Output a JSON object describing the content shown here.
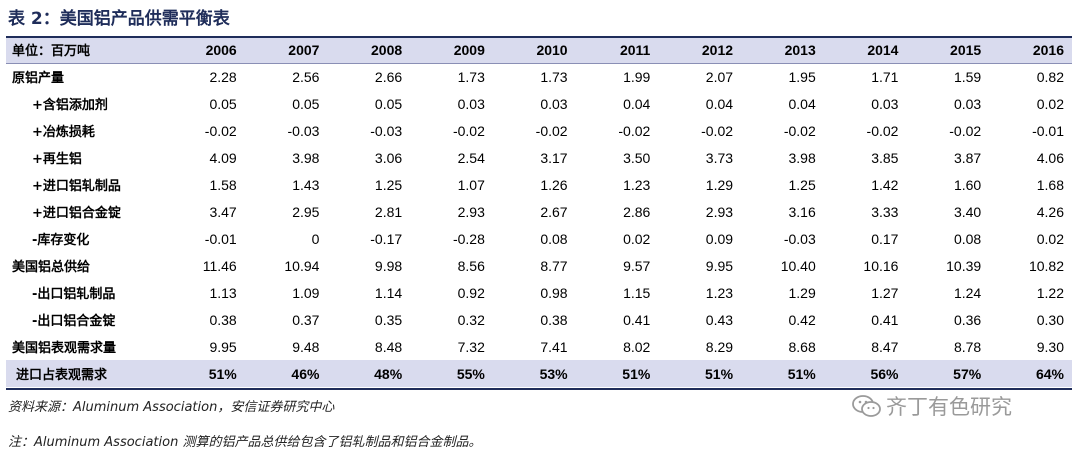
{
  "title": "表 2：美国铝产品供需平衡表",
  "header": {
    "unit_label": "单位：百万吨",
    "years": [
      "2006",
      "2007",
      "2008",
      "2009",
      "2010",
      "2011",
      "2012",
      "2013",
      "2014",
      "2015",
      "2016"
    ]
  },
  "rows": [
    {
      "label": "原铝产量",
      "indent": false,
      "values": [
        "2.28",
        "2.56",
        "2.66",
        "1.73",
        "1.73",
        "1.99",
        "2.07",
        "1.95",
        "1.71",
        "1.59",
        "0.82"
      ]
    },
    {
      "label": "+含铝添加剂",
      "indent": true,
      "values": [
        "0.05",
        "0.05",
        "0.05",
        "0.03",
        "0.03",
        "0.04",
        "0.04",
        "0.04",
        "0.03",
        "0.03",
        "0.02"
      ]
    },
    {
      "label": "+冶炼损耗",
      "indent": true,
      "values": [
        "-0.02",
        "-0.03",
        "-0.03",
        "-0.02",
        "-0.02",
        "-0.02",
        "-0.02",
        "-0.02",
        "-0.02",
        "-0.02",
        "-0.01"
      ]
    },
    {
      "label": "+再生铝",
      "indent": true,
      "values": [
        "4.09",
        "3.98",
        "3.06",
        "2.54",
        "3.17",
        "3.50",
        "3.73",
        "3.98",
        "3.85",
        "3.87",
        "4.06"
      ]
    },
    {
      "label": "+进口铝轧制品",
      "indent": true,
      "values": [
        "1.58",
        "1.43",
        "1.25",
        "1.07",
        "1.26",
        "1.23",
        "1.29",
        "1.25",
        "1.42",
        "1.60",
        "1.68"
      ]
    },
    {
      "label": "+进口铝合金锭",
      "indent": true,
      "values": [
        "3.47",
        "2.95",
        "2.81",
        "2.93",
        "2.67",
        "2.86",
        "2.93",
        "3.16",
        "3.33",
        "3.40",
        "4.26"
      ]
    },
    {
      "label": "-库存变化",
      "indent": true,
      "values": [
        "-0.01",
        "0",
        "-0.17",
        "-0.28",
        "0.08",
        "0.02",
        "0.09",
        "-0.03",
        "0.17",
        "0.08",
        "0.02"
      ]
    },
    {
      "label": "美国铝总供给",
      "indent": false,
      "values": [
        "11.46",
        "10.94",
        "9.98",
        "8.56",
        "8.77",
        "9.57",
        "9.95",
        "10.40",
        "10.16",
        "10.39",
        "10.82"
      ]
    },
    {
      "label": "-出口铝轧制品",
      "indent": true,
      "values": [
        "1.13",
        "1.09",
        "1.14",
        "0.92",
        "0.98",
        "1.15",
        "1.23",
        "1.29",
        "1.27",
        "1.24",
        "1.22"
      ]
    },
    {
      "label": "-出口铝合金锭",
      "indent": true,
      "values": [
        "0.38",
        "0.37",
        "0.35",
        "0.32",
        "0.38",
        "0.41",
        "0.43",
        "0.42",
        "0.41",
        "0.36",
        "0.30"
      ]
    },
    {
      "label": "美国铝表观需求量",
      "indent": false,
      "values": [
        "9.95",
        "9.48",
        "8.48",
        "7.32",
        "7.41",
        "8.02",
        "8.29",
        "8.68",
        "8.47",
        "8.78",
        "9.30"
      ]
    }
  ],
  "highlight_row": {
    "label": "进口占表观需求",
    "values": [
      "51%",
      "46%",
      "48%",
      "55%",
      "53%",
      "51%",
      "51%",
      "51%",
      "56%",
      "57%",
      "64%"
    ]
  },
  "source": "资料来源：Aluminum Association，安信证券研究中心",
  "note": "注：Aluminum Association 测算的铝产品总供给包含了铝轧制品和铝合金制品。",
  "watermark": {
    "text": "齐丁有色研究",
    "icon": "wechat-icon"
  },
  "colors": {
    "title": "#1f2d5a",
    "header_bg": "#d9dbee",
    "rule": "#1f2d5a"
  }
}
